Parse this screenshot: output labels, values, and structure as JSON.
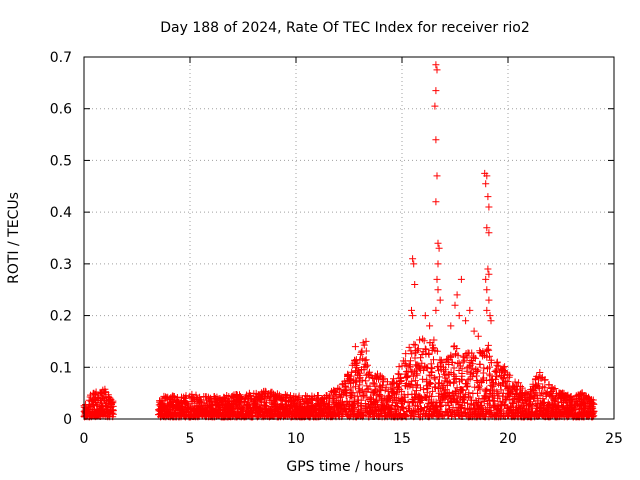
{
  "chart_data": {
    "type": "scatter",
    "title": "Day 188 of 2024, Rate Of TEC Index for receiver rio2",
    "xlabel": "GPS time / hours",
    "ylabel": "ROTI / TECUs",
    "xlim": [
      0,
      25
    ],
    "ylim": [
      0,
      0.7
    ],
    "xticks": [
      0,
      5,
      10,
      15,
      20,
      25
    ],
    "yticks": [
      0,
      0.1,
      0.2,
      0.3,
      0.4,
      0.5,
      0.6,
      0.7
    ],
    "grid": true,
    "marker": "+",
    "color": "#ff0000",
    "data_gap_hours": [
      1.4,
      3.5
    ],
    "envelope": [
      [
        0.0,
        0.03
      ],
      [
        0.5,
        0.05
      ],
      [
        1.0,
        0.055
      ],
      [
        1.3,
        0.035
      ],
      [
        3.6,
        0.04
      ],
      [
        5.0,
        0.045
      ],
      [
        6.0,
        0.04
      ],
      [
        7.5,
        0.045
      ],
      [
        8.6,
        0.05
      ],
      [
        10.0,
        0.04
      ],
      [
        11.5,
        0.045
      ],
      [
        12.3,
        0.07
      ],
      [
        12.5,
        0.1
      ],
      [
        13.0,
        0.12
      ],
      [
        13.2,
        0.15
      ],
      [
        13.5,
        0.09
      ],
      [
        14.0,
        0.08
      ],
      [
        14.5,
        0.07
      ],
      [
        15.0,
        0.11
      ],
      [
        15.5,
        0.15
      ],
      [
        16.0,
        0.16
      ],
      [
        16.5,
        0.15
      ],
      [
        17.0,
        0.11
      ],
      [
        17.5,
        0.14
      ],
      [
        18.0,
        0.13
      ],
      [
        18.5,
        0.12
      ],
      [
        19.0,
        0.15
      ],
      [
        19.3,
        0.11
      ],
      [
        19.8,
        0.1
      ],
      [
        20.3,
        0.07
      ],
      [
        21.0,
        0.05
      ],
      [
        21.5,
        0.09
      ],
      [
        22.0,
        0.06
      ],
      [
        23.0,
        0.04
      ],
      [
        23.5,
        0.05
      ],
      [
        24.0,
        0.035
      ]
    ],
    "peaks": [
      {
        "x": 12.8,
        "y": 0.14
      },
      {
        "x": 13.3,
        "y": 0.15
      },
      {
        "x": 15.5,
        "y": 0.31
      },
      {
        "x": 15.55,
        "y": 0.3
      },
      {
        "x": 15.6,
        "y": 0.26
      },
      {
        "x": 15.45,
        "y": 0.21
      },
      {
        "x": 15.5,
        "y": 0.2
      },
      {
        "x": 16.1,
        "y": 0.2
      },
      {
        "x": 16.3,
        "y": 0.18
      },
      {
        "x": 16.6,
        "y": 0.685
      },
      {
        "x": 16.65,
        "y": 0.675
      },
      {
        "x": 16.6,
        "y": 0.635
      },
      {
        "x": 16.55,
        "y": 0.605
      },
      {
        "x": 16.6,
        "y": 0.54
      },
      {
        "x": 16.65,
        "y": 0.47
      },
      {
        "x": 16.6,
        "y": 0.42
      },
      {
        "x": 16.7,
        "y": 0.34
      },
      {
        "x": 16.75,
        "y": 0.33
      },
      {
        "x": 16.7,
        "y": 0.3
      },
      {
        "x": 16.65,
        "y": 0.27
      },
      {
        "x": 16.7,
        "y": 0.25
      },
      {
        "x": 16.8,
        "y": 0.23
      },
      {
        "x": 16.6,
        "y": 0.21
      },
      {
        "x": 17.3,
        "y": 0.18
      },
      {
        "x": 17.5,
        "y": 0.22
      },
      {
        "x": 17.6,
        "y": 0.24
      },
      {
        "x": 17.8,
        "y": 0.27
      },
      {
        "x": 17.7,
        "y": 0.2
      },
      {
        "x": 18.0,
        "y": 0.19
      },
      {
        "x": 18.2,
        "y": 0.21
      },
      {
        "x": 18.4,
        "y": 0.17
      },
      {
        "x": 18.6,
        "y": 0.16
      },
      {
        "x": 18.9,
        "y": 0.475
      },
      {
        "x": 19.0,
        "y": 0.47
      },
      {
        "x": 18.95,
        "y": 0.455
      },
      {
        "x": 19.05,
        "y": 0.43
      },
      {
        "x": 19.1,
        "y": 0.41
      },
      {
        "x": 19.0,
        "y": 0.37
      },
      {
        "x": 19.1,
        "y": 0.36
      },
      {
        "x": 19.05,
        "y": 0.29
      },
      {
        "x": 19.1,
        "y": 0.28
      },
      {
        "x": 18.95,
        "y": 0.27
      },
      {
        "x": 19.0,
        "y": 0.25
      },
      {
        "x": 19.1,
        "y": 0.23
      },
      {
        "x": 19.0,
        "y": 0.21
      },
      {
        "x": 19.15,
        "y": 0.2
      },
      {
        "x": 19.2,
        "y": 0.19
      },
      {
        "x": 19.5,
        "y": 0.11
      },
      {
        "x": 20.5,
        "y": 0.07
      },
      {
        "x": 21.5,
        "y": 0.09
      },
      {
        "x": 23.5,
        "y": 0.05
      }
    ]
  }
}
